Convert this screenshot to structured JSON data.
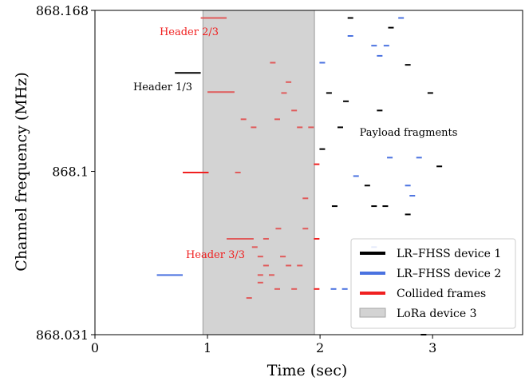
{
  "chart_data": {
    "type": "scatter",
    "xlabel": "Time (sec)",
    "ylabel": "Channel frequency (MHz)",
    "xlim": [
      0,
      3.8
    ],
    "ylim": [
      868.031,
      868.168
    ],
    "xticks": [
      "0",
      "1",
      "2",
      "3"
    ],
    "yticks": [
      "868.031",
      "868.1",
      "868.168"
    ],
    "colors": {
      "device1": "#000000",
      "device2": "#4a72e0",
      "collided": "#f02020",
      "collided_light": "#e05a5a",
      "lora": "#d3d3d3",
      "lora_edge": "#a6a6a6"
    },
    "lora_band": [
      0.96,
      1.95
    ],
    "legend": {
      "position": "lower-right",
      "entries": [
        "LR–FHSS device 1",
        "LR–FHSS device 2",
        "Collided frames",
        "LoRa device 3"
      ]
    },
    "annotations": {
      "header23": "Header 2/3",
      "header13": "Header 1/3",
      "header33": "Header 3/3",
      "payload": "Payload fragments"
    },
    "headers": [
      {
        "series": "collided_light",
        "x": [
          0.94,
          1.17
        ],
        "y": 868.1648
      },
      {
        "series": "device1",
        "x": [
          0.71,
          0.94
        ],
        "y": 868.1416
      },
      {
        "series": "collided_light",
        "x": [
          1.0,
          1.24
        ],
        "y": 868.1335
      },
      {
        "series": "collided",
        "x": [
          0.78,
          1.01
        ],
        "y": 868.0995
      },
      {
        "series": "collided_light",
        "x": [
          1.17,
          1.41
        ],
        "y": 868.0715
      },
      {
        "series": "device2",
        "x": [
          0.55,
          0.78
        ],
        "y": 868.0562
      }
    ],
    "fragments": [
      {
        "series": "device1",
        "x": 2.27,
        "y": 868.1648
      },
      {
        "series": "device1",
        "x": 2.63,
        "y": 868.1607
      },
      {
        "series": "device1",
        "x": 2.78,
        "y": 868.145
      },
      {
        "series": "device1",
        "x": 2.08,
        "y": 868.1331
      },
      {
        "series": "device1",
        "x": 2.23,
        "y": 868.1296
      },
      {
        "series": "device1",
        "x": 2.53,
        "y": 868.1257
      },
      {
        "series": "device1",
        "x": 2.98,
        "y": 868.1331
      },
      {
        "series": "device1",
        "x": 2.18,
        "y": 868.1186
      },
      {
        "series": "device1",
        "x": 2.02,
        "y": 868.1094
      },
      {
        "series": "device1",
        "x": 3.06,
        "y": 868.1021
      },
      {
        "series": "device1",
        "x": 2.42,
        "y": 868.094
      },
      {
        "series": "device1",
        "x": 2.13,
        "y": 868.0853
      },
      {
        "series": "device1",
        "x": 2.48,
        "y": 868.0853
      },
      {
        "series": "device1",
        "x": 2.58,
        "y": 868.0853
      },
      {
        "series": "device1",
        "x": 2.78,
        "y": 868.0818
      },
      {
        "series": "device2",
        "x": 2.72,
        "y": 868.1648
      },
      {
        "series": "device2",
        "x": 2.27,
        "y": 868.1572
      },
      {
        "series": "device2",
        "x": 2.48,
        "y": 868.1531
      },
      {
        "series": "device2",
        "x": 2.59,
        "y": 868.1531
      },
      {
        "series": "device2",
        "x": 2.53,
        "y": 868.1488
      },
      {
        "series": "device2",
        "x": 2.02,
        "y": 868.1459
      },
      {
        "series": "device2",
        "x": 2.62,
        "y": 868.1058
      },
      {
        "series": "device2",
        "x": 2.88,
        "y": 868.1058
      },
      {
        "series": "device2",
        "x": 2.32,
        "y": 868.098
      },
      {
        "series": "device2",
        "x": 2.78,
        "y": 868.094
      },
      {
        "series": "device2",
        "x": 2.82,
        "y": 868.0897
      },
      {
        "series": "device2",
        "x": 2.48,
        "y": 868.068
      },
      {
        "series": "device2",
        "x": 2.12,
        "y": 868.0503
      },
      {
        "series": "device2",
        "x": 2.22,
        "y": 868.0503
      },
      {
        "series": "collided_light",
        "x": 1.58,
        "y": 868.1459
      },
      {
        "series": "collided_light",
        "x": 1.72,
        "y": 868.1377
      },
      {
        "series": "collided_light",
        "x": 1.68,
        "y": 868.1331
      },
      {
        "series": "collided_light",
        "x": 1.77,
        "y": 868.1257
      },
      {
        "series": "collided_light",
        "x": 1.32,
        "y": 868.122
      },
      {
        "series": "collided_light",
        "x": 1.62,
        "y": 868.122
      },
      {
        "series": "collided_light",
        "x": 1.41,
        "y": 868.1186
      },
      {
        "series": "collided_light",
        "x": 1.82,
        "y": 868.1186
      },
      {
        "series": "collided_light",
        "x": 1.92,
        "y": 868.1186
      },
      {
        "series": "collided",
        "x": 1.97,
        "y": 868.103
      },
      {
        "series": "collided_light",
        "x": 1.27,
        "y": 868.0995
      },
      {
        "series": "collided_light",
        "x": 1.87,
        "y": 868.0886
      },
      {
        "series": "collided_light",
        "x": 1.63,
        "y": 868.0758
      },
      {
        "series": "collided_light",
        "x": 1.87,
        "y": 868.0758
      },
      {
        "series": "collided_light",
        "x": 1.52,
        "y": 868.0715
      },
      {
        "series": "collided",
        "x": 1.97,
        "y": 868.0715
      },
      {
        "series": "collided_light",
        "x": 1.42,
        "y": 868.068
      },
      {
        "series": "collided_light",
        "x": 1.47,
        "y": 868.064
      },
      {
        "series": "collided_light",
        "x": 1.67,
        "y": 868.064
      },
      {
        "series": "collided_light",
        "x": 1.52,
        "y": 868.0602
      },
      {
        "series": "collided_light",
        "x": 1.72,
        "y": 868.0602
      },
      {
        "series": "collided_light",
        "x": 1.82,
        "y": 868.0602
      },
      {
        "series": "collided_light",
        "x": 1.47,
        "y": 868.0562
      },
      {
        "series": "collided_light",
        "x": 1.57,
        "y": 868.0562
      },
      {
        "series": "collided_light",
        "x": 1.47,
        "y": 868.053
      },
      {
        "series": "collided_light",
        "x": 1.62,
        "y": 868.0503
      },
      {
        "series": "collided_light",
        "x": 1.77,
        "y": 868.0503
      },
      {
        "series": "collided_light",
        "x": 1.37,
        "y": 868.0465
      },
      {
        "series": "collided",
        "x": 1.97,
        "y": 868.0503
      },
      {
        "series": "device1",
        "x": 2.92,
        "y": 868.031
      }
    ]
  }
}
